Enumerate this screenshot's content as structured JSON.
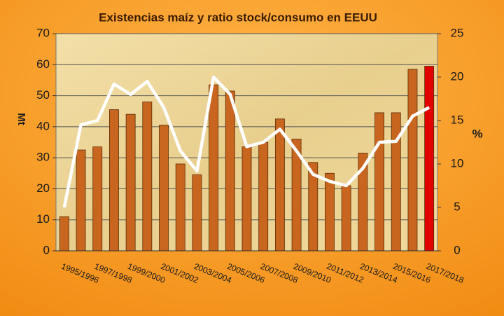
{
  "chart_data": {
    "type": "bar",
    "title": "Existencias maíz y ratio stock/consumo en EEUU",
    "y_label": "Mt",
    "y2_label": "%",
    "categories": [
      "1995/1996",
      null,
      "1997/1998",
      null,
      "1999/2000",
      null,
      "2001/2002",
      null,
      "2003/2004",
      null,
      "2005/2006",
      null,
      "2007/2008",
      null,
      "2009/2010",
      null,
      "2011/2012",
      null,
      "2013/2014",
      null,
      "2015/2016",
      null,
      "2017/2018"
    ],
    "series": [
      {
        "name": "Existencias",
        "type": "bar",
        "color": "#c8661f",
        "colors": [
          "#c8661f",
          "#c8661f",
          "#c8661f",
          "#c8661f",
          "#c8661f",
          "#c8661f",
          "#c8661f",
          "#c8661f",
          "#c8661f",
          "#c8661f",
          "#c8661f",
          "#c8661f",
          "#c8661f",
          "#c8661f",
          "#c8661f",
          "#c8661f",
          "#c8661f",
          "#c8661f",
          "#c8661f",
          "#c8661f",
          "#c8661f",
          "#c8661f",
          "#e00000"
        ],
        "values": [
          11,
          32.5,
          33.5,
          45.5,
          44,
          48,
          40.5,
          28,
          24.5,
          53.5,
          51.5,
          33.5,
          35,
          42.5,
          36,
          28.5,
          25,
          21,
          31.5,
          44.5,
          44.5,
          58.5,
          59.5
        ]
      },
      {
        "name": "Ratio stock/consumo",
        "type": "line",
        "axis": "y2",
        "color": "#ffffff",
        "values": [
          5,
          14.5,
          15,
          19.2,
          18,
          19.5,
          16.5,
          11.5,
          9.2,
          20,
          18,
          12,
          12.5,
          14,
          11.5,
          8.8,
          8,
          7.5,
          9.5,
          12.5,
          12.6,
          15.5,
          16.5
        ]
      }
    ],
    "ylim": [
      0,
      70
    ],
    "yticks": [
      0,
      10,
      20,
      30,
      40,
      50,
      60,
      70
    ],
    "y2lim": [
      0,
      25
    ],
    "y2ticks": [
      0,
      5,
      10,
      15,
      20,
      25
    ],
    "grid": true
  }
}
